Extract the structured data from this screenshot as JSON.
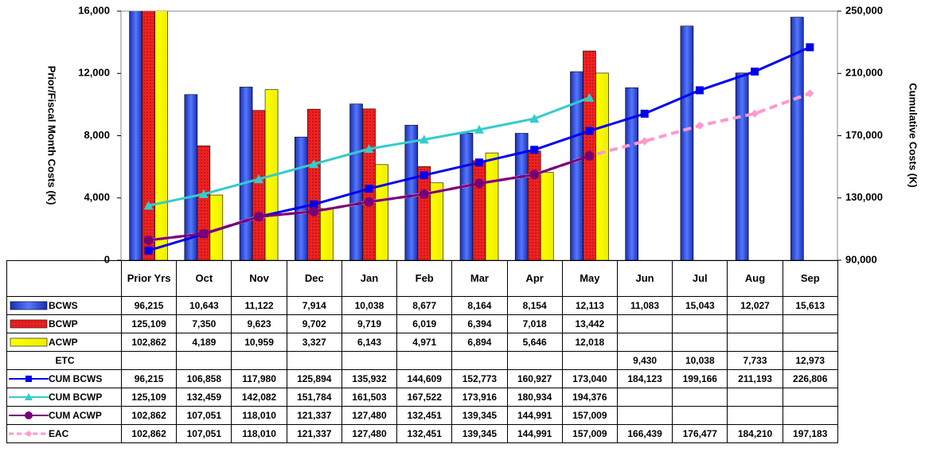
{
  "chart_data": {
    "type": "bar-line",
    "y_title": "Prior/Fiscal Month Costs (K)",
    "y2_title": "Cumulative Costs (K)",
    "categories": [
      "Prior Yrs",
      "Oct",
      "Nov",
      "Dec",
      "Jan",
      "Feb",
      "Mar",
      "Apr",
      "May",
      "Jun",
      "Jul",
      "Aug",
      "Sep"
    ],
    "ylim": [
      0,
      16000
    ],
    "yticks": [
      0,
      {
        "value": 4000,
        "label": "4,000"
      },
      {
        "value": 8000,
        "label": "8,000"
      },
      {
        "value": 12000,
        "label": "12,000"
      },
      {
        "value": 16000,
        "label": "16,000"
      }
    ],
    "y2lim": [
      90000,
      250000
    ],
    "y2ticks": [
      {
        "value": 90000,
        "label": "90,000"
      },
      {
        "value": 130000,
        "label": "130,000"
      },
      {
        "value": 170000,
        "label": "170,000"
      },
      {
        "value": 210000,
        "label": "210,000"
      },
      {
        "value": 250000,
        "label": "250,000"
      }
    ],
    "series": [
      {
        "name": "BCWS",
        "kind": "bar",
        "color": "#3355ee",
        "values": [
          96215,
          10643,
          11122,
          7914,
          10038,
          8677,
          8164,
          8154,
          12113,
          11083,
          15043,
          12027,
          15613
        ],
        "value_labels": [
          "96,215",
          "10,643",
          "11,122",
          "7,914",
          "10,038",
          "8,677",
          "8,164",
          "8,154",
          "12,113",
          "11,083",
          "15,043",
          "12,027",
          "15,613"
        ]
      },
      {
        "name": "BCWP",
        "kind": "bar",
        "color": "#ee2222",
        "values": [
          125109,
          7350,
          9623,
          9702,
          9719,
          6019,
          6394,
          7018,
          13442,
          null,
          null,
          null,
          null
        ],
        "value_labels": [
          "125,109",
          "7,350",
          "9,623",
          "9,702",
          "9,719",
          "6,019",
          "6,394",
          "7,018",
          "13,442",
          null,
          null,
          null,
          null
        ]
      },
      {
        "name": "ACWP",
        "kind": "bar",
        "color": "#ffff00",
        "values": [
          102862,
          4189,
          10959,
          3327,
          6143,
          4971,
          6894,
          5646,
          12018,
          null,
          null,
          null,
          null
        ],
        "value_labels": [
          "102,862",
          "4,189",
          "10,959",
          "3,327",
          "6,143",
          "4,971",
          "6,894",
          "5,646",
          "12,018",
          null,
          null,
          null,
          null
        ]
      },
      {
        "name": "ETC",
        "kind": "none",
        "values": [
          null,
          null,
          null,
          null,
          null,
          null,
          null,
          null,
          null,
          9430,
          10038,
          7733,
          12973
        ],
        "value_labels": [
          null,
          null,
          null,
          null,
          null,
          null,
          null,
          null,
          null,
          "9,430",
          "10,038",
          "7,733",
          "12,973"
        ]
      },
      {
        "name": "CUM BCWS",
        "kind": "line",
        "axis": "y2",
        "marker": "square",
        "color": "#0000ee",
        "values": [
          96215,
          106858,
          117980,
          125894,
          135932,
          144609,
          152773,
          160927,
          173040,
          184123,
          199166,
          211193,
          226806
        ],
        "value_labels": [
          "96,215",
          "106,858",
          "117,980",
          "125,894",
          "135,932",
          "144,609",
          "152,773",
          "160,927",
          "173,040",
          "184,123",
          "199,166",
          "211,193",
          "226,806"
        ]
      },
      {
        "name": "CUM BCWP",
        "kind": "line",
        "axis": "y2",
        "marker": "triangle",
        "color": "#33cccc",
        "values": [
          125109,
          132459,
          142082,
          151784,
          161503,
          167522,
          173916,
          180934,
          194376,
          null,
          null,
          null,
          null
        ],
        "value_labels": [
          "125,109",
          "132,459",
          "142,082",
          "151,784",
          "161,503",
          "167,522",
          "173,916",
          "180,934",
          "194,376",
          null,
          null,
          null,
          null
        ]
      },
      {
        "name": "CUM ACWP",
        "kind": "line",
        "axis": "y2",
        "marker": "circle",
        "color": "#770077",
        "values": [
          102862,
          107051,
          118010,
          121337,
          127480,
          132451,
          139345,
          144991,
          157009,
          null,
          null,
          null,
          null
        ],
        "value_labels": [
          "102,862",
          "107,051",
          "118,010",
          "121,337",
          "127,480",
          "132,451",
          "139,345",
          "144,991",
          "157,009",
          null,
          null,
          null,
          null
        ]
      },
      {
        "name": "EAC",
        "kind": "line",
        "axis": "y2",
        "marker": "diamond",
        "dashed": true,
        "color": "#ff99cc",
        "values": [
          102862,
          107051,
          118010,
          121337,
          127480,
          132451,
          139345,
          144991,
          157009,
          166439,
          176477,
          184210,
          197183
        ],
        "value_labels": [
          "102,862",
          "107,051",
          "118,010",
          "121,337",
          "127,480",
          "132,451",
          "139,345",
          "144,991",
          "157,009",
          "166,439",
          "176,477",
          "184,210",
          "197,183"
        ]
      }
    ]
  }
}
